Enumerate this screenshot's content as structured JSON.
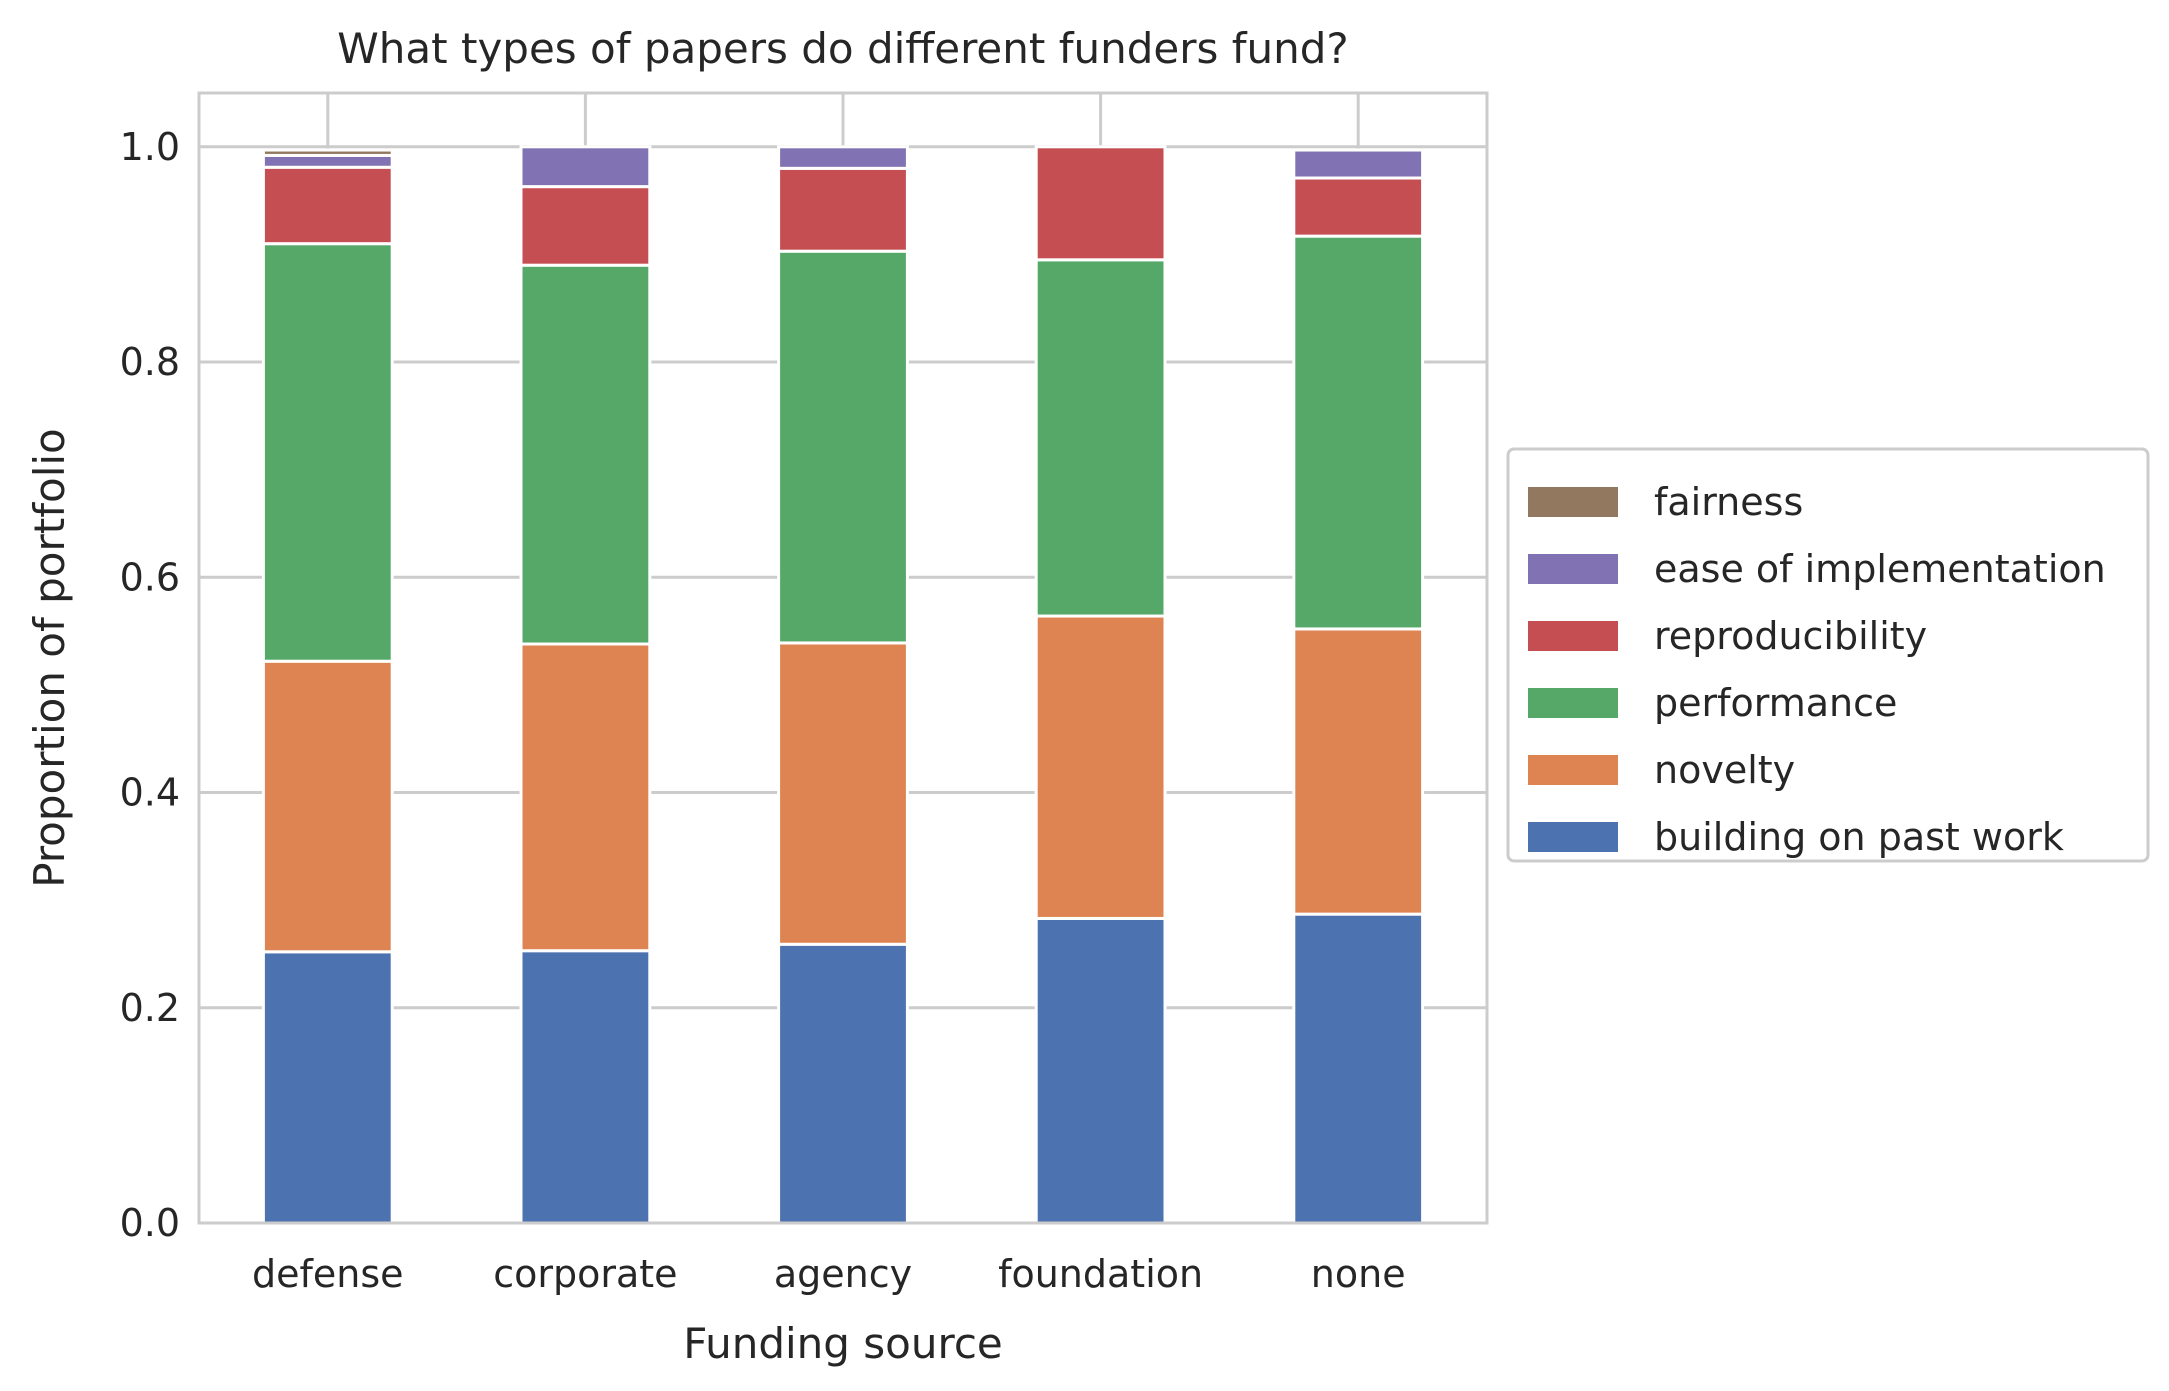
{
  "chart_data": {
    "type": "bar",
    "stacked": true,
    "title": "What types of papers do different funders fund?",
    "xlabel": "Funding source",
    "ylabel": "Proportion of portfolio",
    "categories": [
      "defense",
      "corporate",
      "agency",
      "foundation",
      "none"
    ],
    "ylim": [
      0,
      1.05
    ],
    "yticks": [
      "0.0",
      "0.2",
      "0.4",
      "0.6",
      "0.8",
      "1.0"
    ],
    "grid": true,
    "legend_position": "right",
    "series": [
      {
        "name": "building on past work",
        "color": "#4c72b0",
        "values": [
          0.252,
          0.253,
          0.259,
          0.283,
          0.287
        ]
      },
      {
        "name": "novelty",
        "color": "#dd8452",
        "values": [
          0.27,
          0.285,
          0.28,
          0.281,
          0.265
        ]
      },
      {
        "name": "performance",
        "color": "#55a868",
        "values": [
          0.388,
          0.352,
          0.364,
          0.331,
          0.365
        ]
      },
      {
        "name": "reproducibility",
        "color": "#c44e52",
        "values": [
          0.071,
          0.073,
          0.077,
          0.105,
          0.054
        ]
      },
      {
        "name": "ease of implementation",
        "color": "#8172b3",
        "values": [
          0.011,
          0.037,
          0.02,
          0.0,
          0.026
        ]
      },
      {
        "name": "fairness",
        "color": "#937860",
        "values": [
          0.005,
          0.0,
          0.0,
          0.0,
          0.0
        ]
      }
    ]
  }
}
